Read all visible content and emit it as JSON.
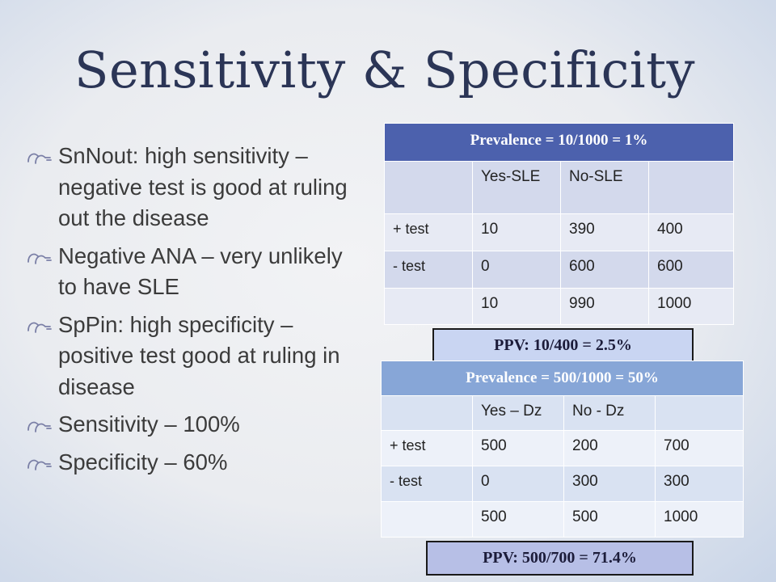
{
  "slide": {
    "title": "Sensitivity & Specificity",
    "bullets": [
      "SnNout: high sensitivity – negative test is good at ruling out the disease",
      "Negative ANA – very unlikely to have SLE",
      "SpPin: high specificity – positive test good at ruling in disease",
      "Sensitivity – 100%",
      "Specificity – 60%"
    ]
  },
  "table1": {
    "header": "Prevalence = 10/1000 = 1%",
    "col_headers": [
      "",
      "Yes-SLE",
      "No-SLE",
      ""
    ],
    "rows": [
      [
        "+ test",
        "10",
        "390",
        "400"
      ],
      [
        "- test",
        "0",
        "600",
        "600"
      ],
      [
        "",
        "10",
        "990",
        "1000"
      ]
    ],
    "ppv": "PPV: 10/400 = 2.5%"
  },
  "table2": {
    "header": "Prevalence = 500/1000 = 50%",
    "col_headers": [
      "",
      "Yes – Dz",
      "No - Dz",
      ""
    ],
    "rows": [
      [
        "+ test",
        "500",
        "200",
        "700"
      ],
      [
        "- test",
        "0",
        "300",
        "300"
      ],
      [
        "",
        "500",
        "500",
        "1000"
      ]
    ],
    "ppv": "PPV: 500/700 = 71.4%"
  },
  "colors": {
    "title": "#2b3556",
    "table1_header": "#4c61ad",
    "table2_header": "#87a6d7"
  },
  "icons": {
    "bullet": "double-hand-bullet-icon"
  }
}
